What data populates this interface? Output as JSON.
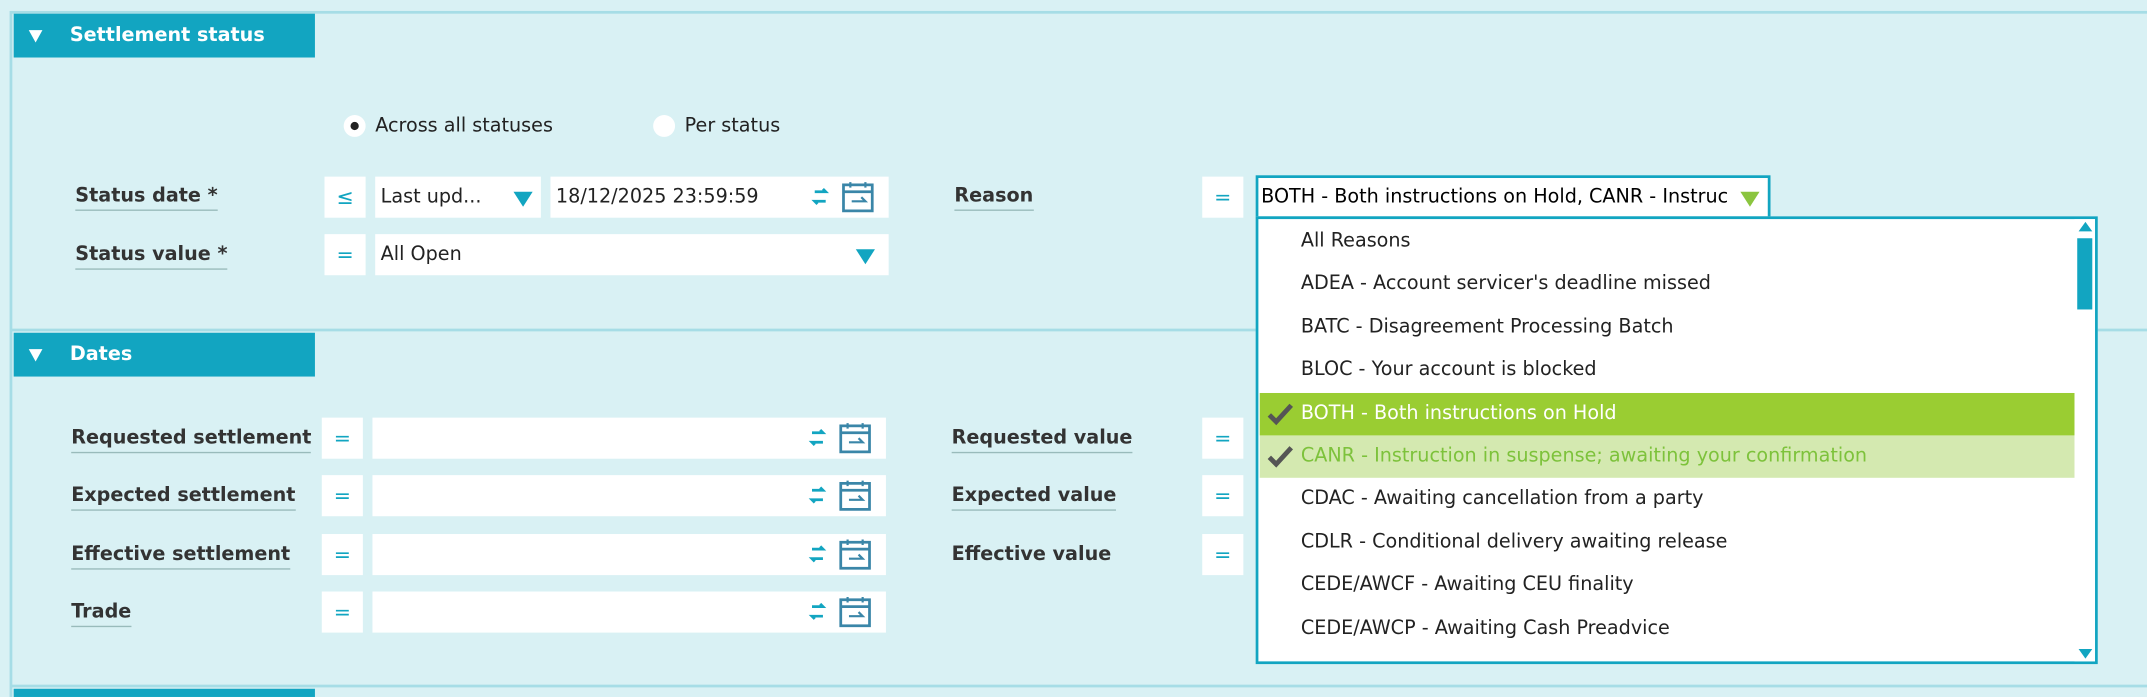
{
  "settlement_status": {
    "title": "Settlement status",
    "radio_options": [
      "Across all statuses",
      "Per status"
    ],
    "selected_radio": 0,
    "status_date": {
      "label": "Status date *",
      "operator": "≤",
      "selector": "Last upd...",
      "value": "18/12/2025 23:59:59"
    },
    "status_value": {
      "label": "Status value *",
      "operator": "=",
      "value": "All Open"
    },
    "reason": {
      "label": "Reason",
      "operator": "=",
      "value": "BOTH - Both instructions on Hold, CANR - Instruc"
    }
  },
  "reason_dropdown": {
    "items": [
      {
        "label": "All Reasons",
        "checked": false,
        "highlighted": false
      },
      {
        "label": "ADEA - Account servicer's deadline missed",
        "checked": false,
        "highlighted": false
      },
      {
        "label": "BATC - Disagreement Processing Batch",
        "checked": false,
        "highlighted": false
      },
      {
        "label": "BLOC - Your account is blocked",
        "checked": false,
        "highlighted": false
      },
      {
        "label": "BOTH - Both instructions on Hold",
        "checked": true,
        "highlighted": true
      },
      {
        "label": "CANR - Instruction in suspense; awaiting your confirmation",
        "checked": true,
        "highlighted": false
      },
      {
        "label": "CDAC - Awaiting cancellation from a party",
        "checked": false,
        "highlighted": false
      },
      {
        "label": "CDLR - Conditional delivery awaiting release",
        "checked": false,
        "highlighted": false
      },
      {
        "label": "CEDE/AWCF - Awaiting CEU finality",
        "checked": false,
        "highlighted": false
      },
      {
        "label": "CEDE/AWCP - Awaiting Cash Preadvice",
        "checked": false,
        "highlighted": false
      }
    ]
  },
  "dates": {
    "title": "Dates",
    "rows": [
      {
        "label": "Requested settlement",
        "operator": "=",
        "value_label": "Requested value",
        "value_operator": "="
      },
      {
        "label": "Expected settlement",
        "operator": "=",
        "value_label": "Expected value",
        "value_operator": "="
      },
      {
        "label": "Effective settlement",
        "operator": "=",
        "value_label": "Effective value",
        "value_operator": "="
      },
      {
        "label": "Trade",
        "operator": "="
      }
    ]
  }
}
